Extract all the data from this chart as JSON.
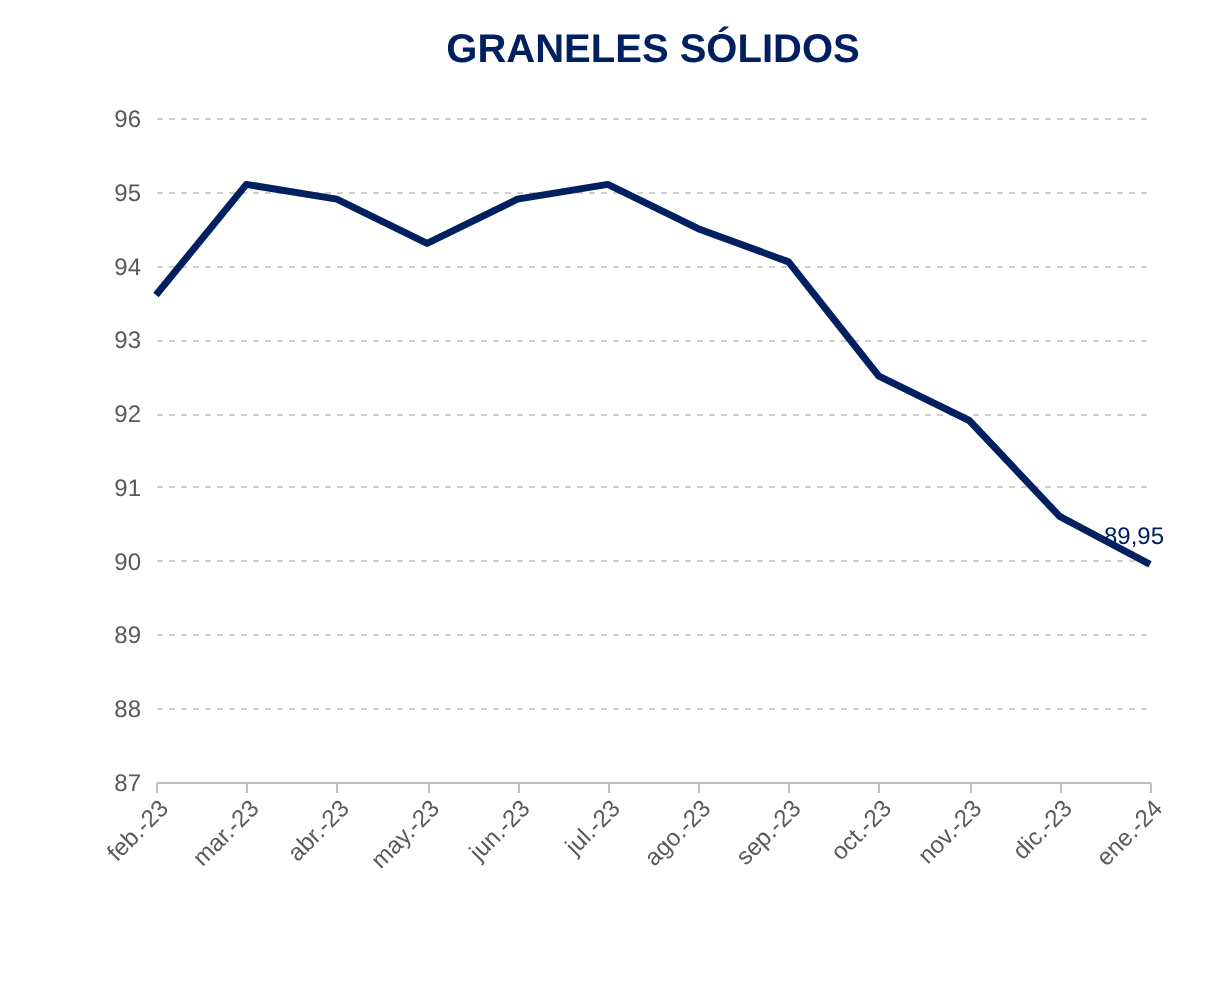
{
  "chart_data": {
    "type": "line",
    "title": "GRANELES SÓLIDOS",
    "categories": [
      "feb.-23",
      "mar.-23",
      "abr.-23",
      "may.-23",
      "jun.-23",
      "jul.-23",
      "ago.-23",
      "sep.-23",
      "oct.-23",
      "nov.-23",
      "dic.-23",
      "ene.-24"
    ],
    "series": [
      {
        "color": "#002060",
        "values": [
          93.6,
          95.1,
          94.9,
          94.3,
          94.9,
          95.1,
          94.5,
          94.05,
          92.5,
          91.9,
          90.6,
          89.95
        ],
        "value_labels": [
          null,
          null,
          null,
          null,
          null,
          null,
          null,
          null,
          null,
          null,
          null,
          "89,95"
        ]
      }
    ],
    "ylim": [
      87,
      96
    ],
    "yticks": [
      87,
      88,
      89,
      90,
      91,
      92,
      93,
      94,
      95,
      96
    ],
    "grid": "y",
    "marker": "none",
    "line_style": "solid"
  }
}
